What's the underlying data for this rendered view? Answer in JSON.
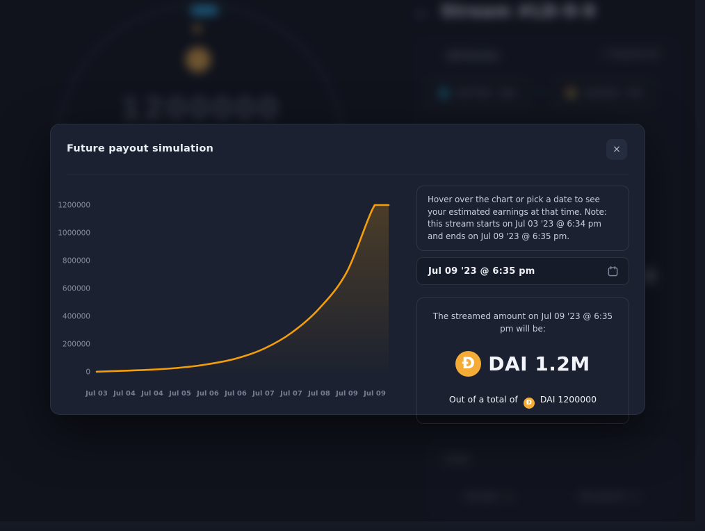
{
  "background": {
    "header": {
      "back_icon": "←",
      "title": "Stream #LD-9-9"
    },
    "attributes_panel": {
      "label": "Attributes",
      "expand_label": "⤢ Expand all",
      "sender_chip": "0xF7b9...18a",
      "receiver_chip": "0xA452...f43",
      "chip_arrow": "→"
    },
    "progress_circle": {
      "amount": "1200000"
    },
    "links_panel": {
      "label": "Links",
      "left_link": "Sender",
      "right_link": "Recipient",
      "link_icon": "⧉"
    }
  },
  "modal": {
    "title": "Future payout simulation",
    "close_label": "×",
    "info_text": "Hover over the chart or pick a date to see your estimated earnings at that time. Note: this stream starts on Jul 03 '23 @ 6:34 pm and ends on Jul 09 '23 @ 6:35 pm.",
    "date_value": "Jul 09 '23 @ 6:35 pm",
    "result": {
      "heading": "The streamed amount on Jul 09 '23 @ 6:35 pm will be:",
      "token_symbol": "Đ",
      "amount": "DAI 1.2M",
      "total_prefix": "Out of a total of",
      "total": "DAI 1200000"
    }
  },
  "colors": {
    "accent_orange": "#F59E0B",
    "dai_orange": "#F5AC37"
  },
  "chart_data": {
    "type": "area",
    "title": "Future payout simulation",
    "x": [
      "Jul 03",
      "Jul 04",
      "Jul 04",
      "Jul 05",
      "Jul 06",
      "Jul 06",
      "Jul 07",
      "Jul 07",
      "Jul 08",
      "Jul 09",
      "Jul 09"
    ],
    "values": [
      1000,
      8000,
      16000,
      30000,
      55000,
      95000,
      165000,
      280000,
      455000,
      720000,
      1200000
    ],
    "end_value": 1200000,
    "ylim": [
      0,
      1200000
    ],
    "yticks": [
      0,
      200000,
      400000,
      600000,
      800000,
      1000000,
      1200000
    ],
    "xlabel": "",
    "ylabel": "",
    "grid": false,
    "legend": null,
    "line_color": "#F59E0B"
  }
}
